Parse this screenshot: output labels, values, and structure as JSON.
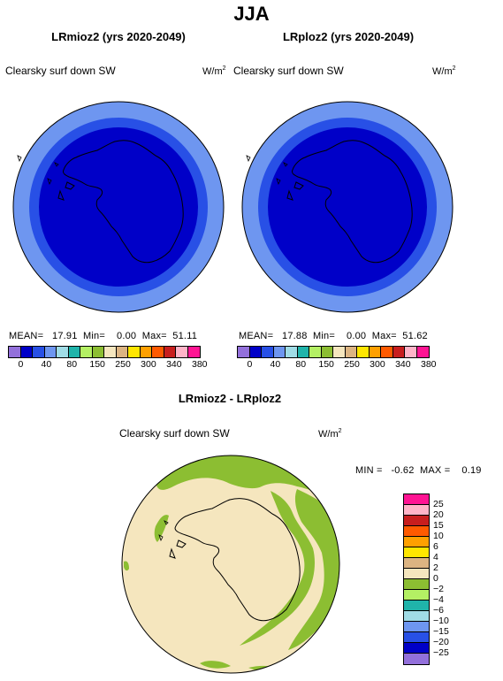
{
  "page_title": "JJA",
  "panels": [
    {
      "subtitle": "LRmioz2 (yrs 2020-2049)",
      "variable": "Clearsky surf down SW",
      "units": "W/m",
      "units_sup": "2",
      "mean_label": "MEAN=",
      "mean": "17.91",
      "min_label": "Min=",
      "min": "0.00",
      "max_label": "Max=",
      "max": "51.11"
    },
    {
      "subtitle": "LRploz2 (yrs 2020-2049)",
      "variable": "Clearsky surf down SW",
      "units": "W/m",
      "units_sup": "2",
      "mean_label": "MEAN=",
      "mean": "17.88",
      "min_label": "Min=",
      "min": "0.00",
      "max_label": "Max=",
      "max": "51.62"
    }
  ],
  "top_colorbar": {
    "colors": [
      "#9370db",
      "#0000c8",
      "#2850e6",
      "#6e96f0",
      "#a0dce6",
      "#20b4aa",
      "#b4f064",
      "#8cbe32",
      "#f5e6be",
      "#dcb482",
      "#ffe600",
      "#ffa000",
      "#ff5a00",
      "#c81e1e",
      "#ffb4c8",
      "#ff1493"
    ],
    "ticks": [
      "0",
      "40",
      "80",
      "150",
      "250",
      "300",
      "340",
      "380"
    ],
    "tick_labels": [
      "0",
      "40",
      "80",
      "150",
      "250",
      "300",
      "340",
      "380"
    ]
  },
  "diff": {
    "subtitle": "LRmioz2 - LRploz2",
    "variable": "Clearsky surf down SW",
    "units": "W/m",
    "units_sup": "2",
    "min_label": "MIN =",
    "min": "-0.62",
    "max_label": "MAX =",
    "max": "0.19",
    "colorbar": {
      "colors": [
        "#ff1493",
        "#ffb4c8",
        "#c81e1e",
        "#ff5a00",
        "#ffa000",
        "#ffe600",
        "#dcb482",
        "#f5e6be",
        "#8cbe32",
        "#b4f064",
        "#20b4aa",
        "#a0dce6",
        "#6e96f0",
        "#2850e6",
        "#0000c8",
        "#9370db"
      ],
      "tick_labels": [
        "25",
        "20",
        "15",
        "10",
        "6",
        "4",
        "2",
        "0",
        "−2",
        "−4",
        "−6",
        "−10",
        "−15",
        "−20",
        "−25"
      ]
    }
  }
}
